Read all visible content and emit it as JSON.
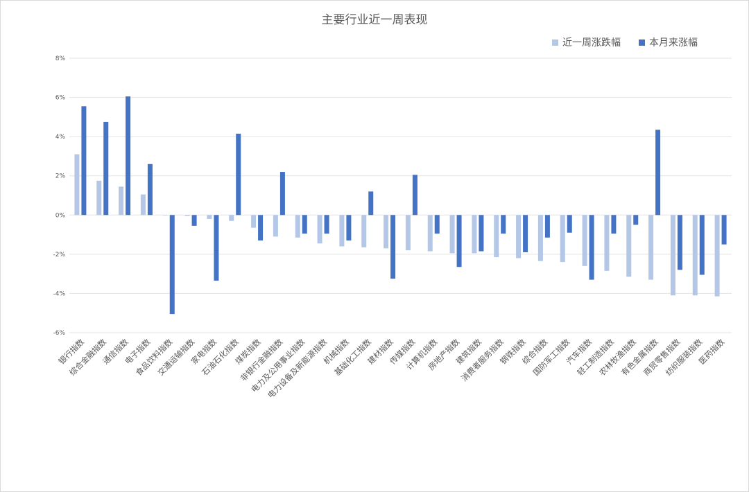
{
  "chart_data": {
    "type": "bar",
    "title": "主要行业近一周表现",
    "xlabel": "",
    "ylabel": "",
    "ylim": [
      -6,
      8
    ],
    "yticks": [
      8,
      6,
      4,
      2,
      0,
      -2,
      -4,
      -6
    ],
    "ytick_labels": [
      "8%",
      "6%",
      "4%",
      "2%",
      "0%",
      "-2%",
      "-4%",
      "-6%"
    ],
    "grid": true,
    "legend_position": "top-right",
    "categories": [
      "银行指数",
      "综合金融指数",
      "通信指数",
      "电子指数",
      "食品饮料指数",
      "交通运输指数",
      "家电指数",
      "石油石化指数",
      "煤炭指数",
      "非银行金融指数",
      "电力及公用事业指数",
      "电力设备及新能源指数",
      "机械指数",
      "基础化工指数",
      "建材指数",
      "传媒指数",
      "计算机指数",
      "房地产指数",
      "建筑指数",
      "消费者服务指数",
      "钢铁指数",
      "综合指数",
      "国防军工指数",
      "汽车指数",
      "轻工制造指数",
      "农林牧渔指数",
      "有色金属指数",
      "商贸零售指数",
      "纺织服装指数",
      "医药指数"
    ],
    "series": [
      {
        "name": "近一周涨跌幅",
        "color": "#b4c7e7",
        "values": [
          3.1,
          1.75,
          1.45,
          1.05,
          0.0,
          -0.05,
          -0.2,
          -0.3,
          -0.65,
          -1.1,
          -1.15,
          -1.45,
          -1.6,
          -1.65,
          -1.7,
          -1.8,
          -1.85,
          -1.95,
          -1.95,
          -2.15,
          -2.2,
          -2.35,
          -2.4,
          -2.6,
          -2.85,
          -3.15,
          -3.3,
          -4.1,
          -4.1,
          -4.15
        ]
      },
      {
        "name": "本月来涨幅",
        "color": "#4472c4",
        "values": [
          5.55,
          4.75,
          6.05,
          2.6,
          -5.05,
          -0.55,
          -3.35,
          4.15,
          -1.3,
          2.2,
          -0.95,
          -0.95,
          -1.3,
          1.2,
          -3.25,
          2.05,
          -0.95,
          -2.65,
          -1.85,
          -0.95,
          -1.9,
          -1.15,
          -0.9,
          -3.3,
          -0.95,
          -0.5,
          4.35,
          -2.8,
          -3.05,
          -1.5
        ]
      }
    ]
  }
}
